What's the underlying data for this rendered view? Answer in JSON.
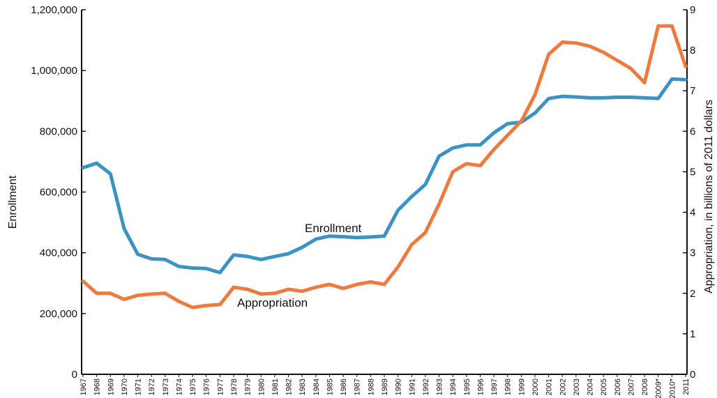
{
  "chart_data": {
    "type": "line",
    "title": "",
    "ylabel": "Enrollment",
    "y2label": "Appropriation, in billions of 2011 dollars",
    "ylim": [
      0,
      1200000
    ],
    "y2lim": [
      0,
      9
    ],
    "grid": false,
    "yticks": [
      "0",
      "200,000",
      "400,000",
      "600,000",
      "800,000",
      "1,000,000",
      "1,200,000"
    ],
    "yticks_values": [
      0,
      200000,
      400000,
      600000,
      800000,
      1000000,
      1200000
    ],
    "y2ticks": [
      "0",
      "1",
      "2",
      "3",
      "4",
      "5",
      "6",
      "7",
      "8",
      "9"
    ],
    "y2ticks_values": [
      0,
      1,
      2,
      3,
      4,
      5,
      6,
      7,
      8,
      9
    ],
    "categories": [
      "1967",
      "1968",
      "1969",
      "1970",
      "1971",
      "1972",
      "1973",
      "1974",
      "1975",
      "1976",
      "1977",
      "1978",
      "1979",
      "1980",
      "1981",
      "1982",
      "1983",
      "1984",
      "1985",
      "1986",
      "1987",
      "1988",
      "1989",
      "1990",
      "1991",
      "1992",
      "1993",
      "1994",
      "1995",
      "1996",
      "1997",
      "1998",
      "1999",
      "2000",
      "2001",
      "2002",
      "2003",
      "2004",
      "2005",
      "2006",
      "2007",
      "2008",
      "2009*",
      "2010*",
      "2011"
    ],
    "series": [
      {
        "name": "Enrollment",
        "axis": "left",
        "color": "#3b93c3",
        "values": [
          680000,
          695000,
          660000,
          480000,
          395000,
          380000,
          378000,
          355000,
          350000,
          348000,
          335000,
          393000,
          388000,
          378000,
          388000,
          397000,
          418000,
          445000,
          455000,
          453000,
          450000,
          452000,
          455000,
          540000,
          585000,
          625000,
          718000,
          745000,
          755000,
          755000,
          795000,
          825000,
          830000,
          860000,
          908000,
          915000,
          913000,
          910000,
          910000,
          912000,
          912000,
          910000,
          908000,
          972000,
          970000
        ]
      },
      {
        "name": "Appropriation",
        "axis": "right",
        "color": "#ee7a3e",
        "values": [
          2.3,
          2.0,
          2.0,
          1.85,
          1.95,
          1.98,
          2.0,
          1.8,
          1.65,
          1.7,
          1.72,
          2.15,
          2.1,
          1.98,
          2.0,
          2.1,
          2.05,
          2.15,
          2.22,
          2.12,
          2.22,
          2.28,
          2.22,
          2.65,
          3.2,
          3.5,
          4.2,
          5.0,
          5.2,
          5.15,
          5.55,
          5.9,
          6.25,
          6.9,
          7.9,
          8.2,
          8.18,
          8.1,
          7.95,
          7.75,
          7.55,
          7.2,
          8.6,
          8.6,
          7.6
        ]
      }
    ]
  }
}
